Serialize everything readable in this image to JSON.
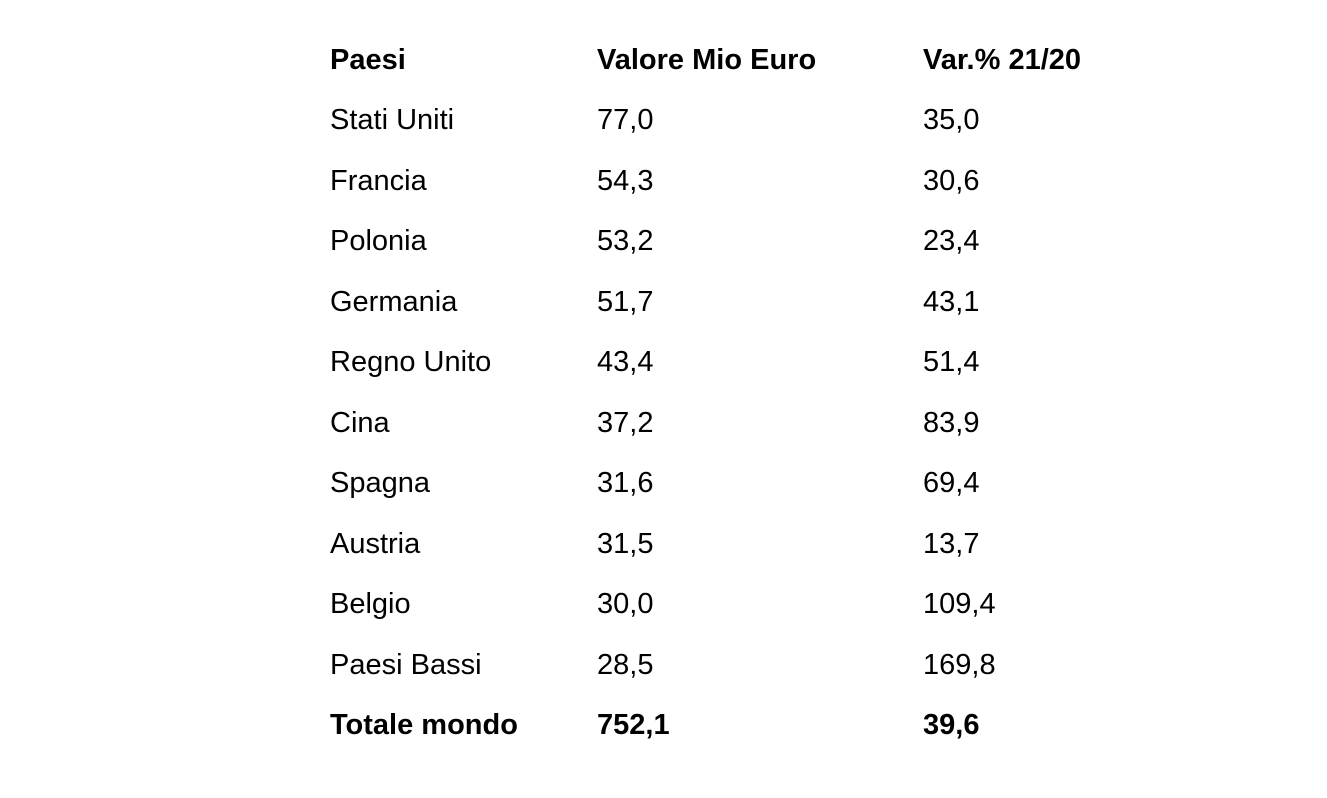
{
  "table": {
    "headers": [
      "Paesi",
      "Valore Mio Euro",
      "Var.% 21/20"
    ],
    "rows": [
      [
        "Stati Uniti",
        "77,0",
        "35,0"
      ],
      [
        "Francia",
        "54,3",
        "30,6"
      ],
      [
        "Polonia",
        "53,2",
        "23,4"
      ],
      [
        "Germania",
        "51,7",
        "43,1"
      ],
      [
        "Regno Unito",
        "43,4",
        "51,4"
      ],
      [
        "Cina",
        "37,2",
        "83,9"
      ],
      [
        "Spagna",
        "31,6",
        "69,4"
      ],
      [
        "Austria",
        "31,5",
        "13,7"
      ],
      [
        "Belgio",
        "30,0",
        "109,4"
      ],
      [
        "Paesi Bassi",
        "28,5",
        "169,8"
      ]
    ],
    "total": [
      "Totale mondo",
      "752,1",
      "39,6"
    ]
  }
}
